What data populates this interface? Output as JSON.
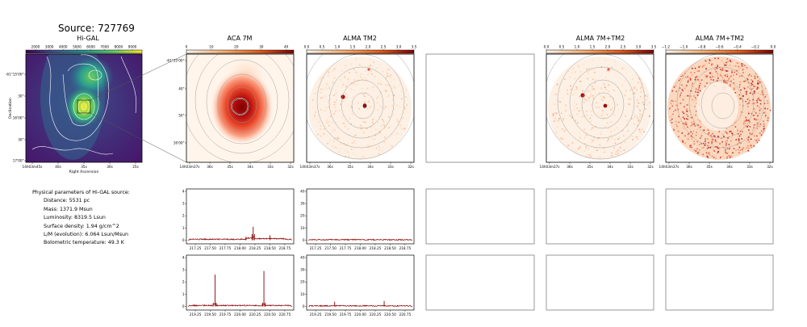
{
  "title": "Source: 727769",
  "colors": {
    "spectrum": "#8b0000",
    "contour": "#ffffff",
    "frame": "#000000",
    "empty_border": "#555555"
  },
  "panels": [
    {
      "id": "higal",
      "title": "Hi-GAL",
      "cmap": "viridis",
      "colorbar_ticks": [
        "2000",
        "3000",
        "4000",
        "5000",
        "6000",
        "7000",
        "8000",
        "9000"
      ],
      "y_ticks": [
        "-61°15'00\"",
        "30\"",
        "16'00\"",
        "30\"",
        "17'00\""
      ],
      "x_ticks": [
        "14h03m45s",
        "40s",
        "35s",
        "30s",
        "25s"
      ],
      "xlabel": "Right Ascension",
      "ylabel": "Declination"
    },
    {
      "id": "aca",
      "title": "ACA 7M",
      "cmap": "reds",
      "colorbar_ticks": [
        "0",
        "10",
        "20",
        "30",
        "40"
      ],
      "y_ticks": [
        "-61°15'00\"",
        "40\"",
        "50\"",
        "16'00\""
      ],
      "x_ticks": [
        "14h03m37s",
        "36s",
        "35s",
        "34s",
        "33s",
        "32s"
      ]
    },
    {
      "id": "tm2",
      "title": "ALMA TM2",
      "cmap": "reds",
      "colorbar_ticks": [
        "0.0",
        "0.5",
        "1.0",
        "1.5",
        "2.0",
        "2.5",
        "3.0",
        "3.5"
      ],
      "x_ticks": [
        "14h03m37s",
        "36s",
        "35s",
        "34s",
        "33s",
        "32s"
      ]
    },
    {
      "id": "combo",
      "title": "ALMA 7M+TM2",
      "cmap": "reds",
      "colorbar_ticks": [
        "0.0",
        "0.5",
        "1.0",
        "1.5",
        "2.0",
        "2.5",
        "3.0",
        "3.5"
      ],
      "x_ticks": [
        "14h03m37s",
        "36s",
        "35s",
        "34s",
        "33s",
        "32s"
      ]
    },
    {
      "id": "combo_neg",
      "title": "ALMA 7M+TM2",
      "cmap": "reds",
      "colorbar_ticks": [
        "−1.2",
        "−1.0",
        "−0.8",
        "−0.6",
        "−0.4",
        "−0.2",
        "0.0"
      ],
      "x_ticks": [
        "14h03m37s",
        "36s",
        "35s",
        "34s",
        "33s",
        "32s"
      ]
    }
  ],
  "params": {
    "heading": "Physical parameters of Hi-GAL source:",
    "lines": [
      "Distance: 5531 pc",
      "Mass: 1371.9 Msun",
      "Luminosity: 8319.5 Lsun",
      "Surface density: 1.94 g/cm^2",
      "L/M (evolution): 6.064 Lsun/Msun",
      "Bolometric temperature: 49.3 K"
    ]
  },
  "chart_data": [
    {
      "type": "line",
      "name": "spectrum-aca-upper",
      "x": [
        217.15,
        217.25,
        217.5,
        217.75,
        218.0,
        218.1,
        218.2,
        218.22,
        218.24,
        218.3,
        218.5,
        218.75,
        218.85
      ],
      "y": [
        0.1,
        0.2,
        0.1,
        0.2,
        0.1,
        0.3,
        0.5,
        1.1,
        0.5,
        0.2,
        0.4,
        0.2,
        0.1
      ],
      "xlim": [
        217.1,
        218.9
      ],
      "ylim": [
        -0.3,
        4.2
      ],
      "x_ticks": [
        217.25,
        217.5,
        217.75,
        218.0,
        218.25,
        218.5,
        218.75
      ],
      "x_tick_labels": [
        "217.25",
        "217.50",
        "217.75",
        "218.00",
        "218.25",
        "218.50",
        "218.75"
      ],
      "y_ticks": [
        0,
        1,
        2,
        3,
        4
      ],
      "y_tick_labels": [
        "0",
        "1",
        "2",
        "3",
        "4"
      ]
    },
    {
      "type": "line",
      "name": "spectrum-tm2-upper",
      "x": [
        217.15,
        217.25,
        217.5,
        217.75,
        218.0,
        218.25,
        218.5,
        218.75,
        218.85
      ],
      "y": [
        0.4,
        0.6,
        0.3,
        0.5,
        0.4,
        0.6,
        0.3,
        0.5,
        0.4
      ],
      "xlim": [
        217.1,
        218.9
      ],
      "ylim": [
        -3,
        42
      ],
      "x_ticks": [
        217.25,
        217.5,
        217.75,
        218.0,
        218.25,
        218.5,
        218.75
      ],
      "x_tick_labels": [
        "217.25",
        "217.50",
        "217.75",
        "218.00",
        "218.25",
        "218.50",
        "218.75"
      ],
      "y_ticks": [
        0,
        10,
        20,
        30,
        40
      ],
      "y_tick_labels": [
        "0",
        "10",
        "20",
        "30",
        "40"
      ]
    },
    {
      "type": "line",
      "name": "spectrum-aca-lower",
      "x": [
        219.15,
        219.25,
        219.5,
        219.55,
        219.58,
        219.6,
        219.75,
        220.0,
        220.25,
        220.38,
        220.4,
        220.42,
        220.5,
        220.75,
        220.85
      ],
      "y": [
        0.1,
        0.1,
        0.1,
        0.3,
        2.6,
        0.3,
        0.1,
        0.2,
        0.1,
        0.3,
        2.9,
        0.3,
        0.1,
        0.2,
        0.1
      ],
      "xlim": [
        219.1,
        220.9
      ],
      "ylim": [
        -0.3,
        4.2
      ],
      "x_ticks": [
        219.25,
        219.5,
        219.75,
        220.0,
        220.25,
        220.5,
        220.75
      ],
      "x_tick_labels": [
        "219.25",
        "219.50",
        "219.75",
        "220.00",
        "220.25",
        "220.50",
        "220.75"
      ],
      "y_ticks": [
        0,
        1,
        2,
        3,
        4
      ],
      "y_tick_labels": [
        "0",
        "1",
        "2",
        "3",
        "4"
      ]
    },
    {
      "type": "line",
      "name": "spectrum-tm2-lower",
      "x": [
        219.15,
        219.25,
        219.5,
        219.55,
        219.57,
        219.6,
        219.75,
        220.0,
        220.25,
        220.38,
        220.4,
        220.42,
        220.5,
        220.75,
        220.85
      ],
      "y": [
        0.4,
        0.5,
        0.4,
        0.6,
        3.8,
        0.6,
        0.5,
        0.4,
        0.5,
        0.7,
        4.4,
        0.6,
        0.4,
        0.5,
        0.4
      ],
      "xlim": [
        219.1,
        220.9
      ],
      "ylim": [
        -3,
        42
      ],
      "x_ticks": [
        219.25,
        219.5,
        219.75,
        220.0,
        220.25,
        220.5,
        220.75
      ],
      "x_tick_labels": [
        "219.25",
        "219.50",
        "219.75",
        "220.00",
        "220.25",
        "220.50",
        "220.75"
      ],
      "y_ticks": [
        0,
        10,
        20,
        30,
        40
      ],
      "y_tick_labels": [
        "0",
        "10",
        "20",
        "30",
        "40"
      ]
    }
  ]
}
